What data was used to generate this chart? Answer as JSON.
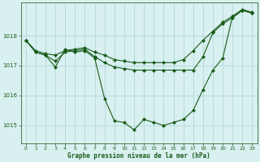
{
  "xlabel": "Graphe pression niveau de la mer (hPa)",
  "background_color": "#d8f0f0",
  "grid_color": "#b8dada",
  "line_color": "#1a5c1a",
  "marker_color": "#1a5c1a",
  "xlim": [
    -0.5,
    23.5
  ],
  "ylim": [
    1014.4,
    1019.1
  ],
  "yticks": [
    1015,
    1016,
    1017,
    1018
  ],
  "xticks": [
    0,
    1,
    2,
    3,
    4,
    5,
    6,
    7,
    8,
    9,
    10,
    11,
    12,
    13,
    14,
    15,
    16,
    17,
    18,
    19,
    20,
    21,
    22,
    23
  ],
  "series1_deep": [
    1017.85,
    1017.45,
    1017.35,
    1016.95,
    1017.55,
    1017.45,
    1017.5,
    1017.25,
    1015.9,
    1015.15,
    1015.1,
    1014.85,
    1015.2,
    1015.1,
    1015.0,
    1015.1,
    1015.2,
    1015.5,
    1016.2,
    1016.85,
    1017.25,
    1018.65,
    1018.85,
    1018.75
  ],
  "series2_flat": [
    1017.85,
    1017.45,
    1017.35,
    1017.15,
    1017.45,
    1017.5,
    1017.55,
    1017.3,
    1017.1,
    1016.95,
    1016.9,
    1016.85,
    1016.85,
    1016.85,
    1016.85,
    1016.85,
    1016.85,
    1016.85,
    1017.3,
    1018.1,
    1018.4,
    1018.6,
    1018.85,
    1018.75
  ],
  "series3_rise": [
    1017.85,
    1017.5,
    1017.4,
    1017.35,
    1017.5,
    1017.55,
    1017.6,
    1017.45,
    1017.35,
    1017.2,
    1017.15,
    1017.1,
    1017.1,
    1017.1,
    1017.1,
    1017.1,
    1017.2,
    1017.5,
    1017.85,
    1018.15,
    1018.45,
    1018.65,
    1018.88,
    1018.78
  ]
}
